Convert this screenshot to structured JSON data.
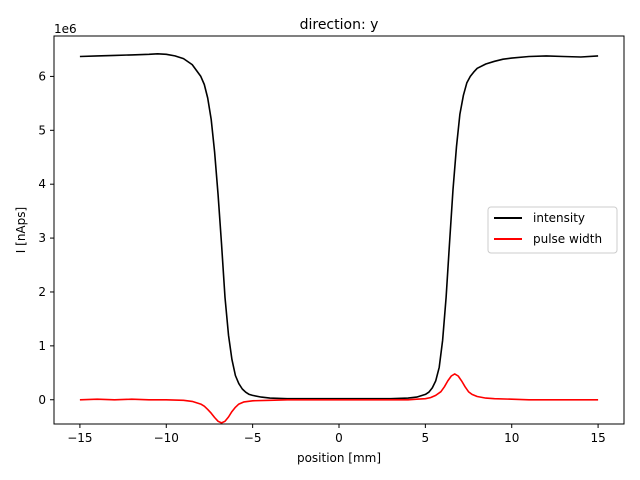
{
  "chart_data": {
    "type": "line",
    "title": "direction: y",
    "xlabel": "position [mm]",
    "ylabel": "I [nAps]",
    "y_offset_text": "1e6",
    "xlim": [
      -16.5,
      16.5
    ],
    "ylim": [
      -0.45,
      6.75
    ],
    "x_ticks": [
      -15,
      -10,
      -5,
      0,
      5,
      10,
      15
    ],
    "y_ticks": [
      0,
      1,
      2,
      3,
      4,
      5,
      6
    ],
    "grid": false,
    "legend_position": "center right",
    "series": [
      {
        "name": "intensity",
        "color": "#000000",
        "x": [
          -15,
          -14,
          -13,
          -12,
          -11,
          -10.5,
          -10,
          -9.5,
          -9,
          -8.5,
          -8,
          -7.8,
          -7.6,
          -7.4,
          -7.2,
          -7.0,
          -6.8,
          -6.6,
          -6.4,
          -6.2,
          -6.0,
          -5.8,
          -5.6,
          -5.4,
          -5.2,
          -5.0,
          -4.5,
          -4,
          -3,
          -2,
          -1,
          0,
          1,
          2,
          3,
          4,
          4.5,
          5.0,
          5.2,
          5.4,
          5.6,
          5.8,
          6.0,
          6.2,
          6.4,
          6.6,
          6.8,
          7.0,
          7.2,
          7.4,
          7.6,
          7.8,
          8.0,
          8.5,
          9,
          9.5,
          10,
          11,
          12,
          13,
          14,
          15
        ],
        "values": [
          6.37,
          6.38,
          6.39,
          6.4,
          6.41,
          6.42,
          6.41,
          6.38,
          6.33,
          6.22,
          6.0,
          5.85,
          5.6,
          5.2,
          4.6,
          3.8,
          2.9,
          1.9,
          1.2,
          0.75,
          0.45,
          0.3,
          0.2,
          0.14,
          0.1,
          0.08,
          0.05,
          0.03,
          0.02,
          0.02,
          0.02,
          0.02,
          0.02,
          0.02,
          0.02,
          0.03,
          0.05,
          0.1,
          0.14,
          0.22,
          0.35,
          0.6,
          1.1,
          1.9,
          2.9,
          3.9,
          4.7,
          5.3,
          5.65,
          5.88,
          6.0,
          6.08,
          6.15,
          6.23,
          6.28,
          6.32,
          6.34,
          6.37,
          6.38,
          6.37,
          6.36,
          6.38
        ]
      },
      {
        "name": "pulse width",
        "color": "#ff0000",
        "x": [
          -15,
          -14,
          -13,
          -12,
          -11,
          -10,
          -9,
          -8.5,
          -8,
          -7.8,
          -7.6,
          -7.4,
          -7.2,
          -7.0,
          -6.8,
          -6.6,
          -6.4,
          -6.2,
          -6.0,
          -5.8,
          -5.5,
          -5,
          -4,
          -3,
          -2,
          -1,
          0,
          1,
          2,
          3,
          4,
          4.5,
          5,
          5.3,
          5.6,
          5.9,
          6.1,
          6.3,
          6.5,
          6.7,
          6.9,
          7.1,
          7.3,
          7.5,
          7.7,
          8.0,
          8.5,
          9,
          10,
          11,
          12,
          13,
          14,
          15
        ],
        "values": [
          0.0,
          0.01,
          0.0,
          0.01,
          0.0,
          0.0,
          -0.01,
          -0.03,
          -0.08,
          -0.12,
          -0.18,
          -0.25,
          -0.33,
          -0.4,
          -0.43,
          -0.4,
          -0.32,
          -0.22,
          -0.14,
          -0.08,
          -0.04,
          -0.02,
          -0.01,
          0.0,
          0.0,
          0.0,
          0.0,
          0.0,
          0.0,
          0.0,
          0.0,
          0.01,
          0.02,
          0.04,
          0.08,
          0.15,
          0.24,
          0.35,
          0.44,
          0.48,
          0.44,
          0.35,
          0.24,
          0.15,
          0.1,
          0.06,
          0.03,
          0.02,
          0.01,
          0.0,
          0.0,
          0.0,
          0.0,
          0.0
        ]
      }
    ]
  }
}
